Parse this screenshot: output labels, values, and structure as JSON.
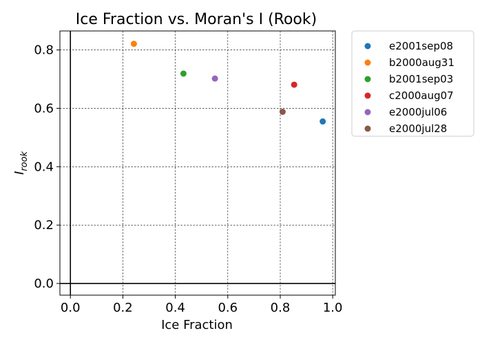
{
  "chart_data": {
    "type": "scatter",
    "title": "Ice Fraction vs. Moran's I (Rook)",
    "xlabel": "Ice Fraction",
    "ylabel_main": "I",
    "ylabel_sub": "rook",
    "xlim": [
      -0.04,
      1.01
    ],
    "ylim": [
      -0.04,
      0.865
    ],
    "xticks": [
      0.0,
      0.2,
      0.4,
      0.6,
      0.8,
      1.0
    ],
    "xtick_labels": [
      "0.0",
      "0.2",
      "0.4",
      "0.6",
      "0.8",
      "1.0"
    ],
    "yticks": [
      0.0,
      0.2,
      0.4,
      0.6,
      0.8
    ],
    "ytick_labels": [
      "0.0",
      "0.2",
      "0.4",
      "0.6",
      "0.8"
    ],
    "grid": true,
    "legend_position": "outside-right-top",
    "series": [
      {
        "name": "e2001sep08",
        "color": "#1f77b4",
        "x": [
          0.962
        ],
        "y": [
          0.555
        ]
      },
      {
        "name": "b2000aug31",
        "color": "#ff7f0e",
        "x": [
          0.242
        ],
        "y": [
          0.821
        ]
      },
      {
        "name": "b2001sep03",
        "color": "#2ca02c",
        "x": [
          0.431
        ],
        "y": [
          0.719
        ]
      },
      {
        "name": "c2000aug07",
        "color": "#d62728",
        "x": [
          0.853
        ],
        "y": [
          0.681
        ]
      },
      {
        "name": "e2000jul06",
        "color": "#9467bd",
        "x": [
          0.551
        ],
        "y": [
          0.702
        ]
      },
      {
        "name": "e2000jul28",
        "color": "#8c564b",
        "x": [
          0.809
        ],
        "y": [
          0.588
        ]
      }
    ]
  }
}
